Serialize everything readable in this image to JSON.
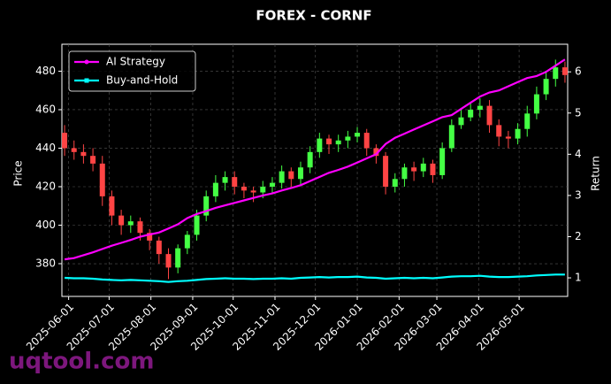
{
  "chart_data": {
    "type": "candlestick",
    "title": "FOREX - CORNF",
    "ylabel": "Price",
    "y2label": "Return",
    "watermark": "uqtool.com",
    "x": [
      "2025-05-29",
      "2025-06-05",
      "2025-06-12",
      "2025-06-19",
      "2025-06-26",
      "2025-07-03",
      "2025-07-10",
      "2025-07-17",
      "2025-07-24",
      "2025-07-31",
      "2025-08-07",
      "2025-08-14",
      "2025-08-21",
      "2025-08-28",
      "2025-09-04",
      "2025-09-11",
      "2025-09-18",
      "2025-09-25",
      "2025-10-02",
      "2025-10-09",
      "2025-10-16",
      "2025-10-23",
      "2025-10-30",
      "2025-11-06",
      "2025-11-13",
      "2025-11-20",
      "2025-11-27",
      "2025-12-04",
      "2025-12-11",
      "2025-12-18",
      "2025-12-25",
      "2026-01-01",
      "2026-01-08",
      "2026-01-15",
      "2026-01-22",
      "2026-01-29",
      "2026-02-05",
      "2026-02-12",
      "2026-02-19",
      "2026-02-26",
      "2026-03-05",
      "2026-03-12",
      "2026-03-19",
      "2026-03-26",
      "2026-04-02",
      "2026-04-09",
      "2026-04-16",
      "2026-04-23",
      "2026-04-30",
      "2026-05-07",
      "2026-05-14",
      "2026-05-21",
      "2026-05-28",
      "2026-06-04"
    ],
    "open": [
      448,
      440,
      438,
      436,
      432,
      415,
      405,
      400,
      402,
      396,
      392,
      385,
      378,
      388,
      395,
      405,
      415,
      422,
      425,
      420,
      418,
      417,
      420,
      422,
      428,
      424,
      430,
      438,
      445,
      442,
      444,
      446,
      448,
      440,
      436,
      420,
      424,
      430,
      428,
      432,
      426,
      440,
      452,
      456,
      460,
      462,
      452,
      446,
      445,
      450,
      458,
      468,
      476,
      482
    ],
    "high": [
      452,
      444,
      442,
      440,
      436,
      418,
      408,
      405,
      404,
      398,
      394,
      388,
      390,
      397,
      408,
      418,
      426,
      428,
      428,
      422,
      420,
      423,
      425,
      431,
      430,
      433,
      441,
      448,
      447,
      447,
      449,
      451,
      450,
      442,
      438,
      427,
      432,
      433,
      435,
      434,
      443,
      455,
      460,
      464,
      466,
      465,
      455,
      449,
      453,
      462,
      472,
      480,
      486,
      485
    ],
    "low": [
      436,
      434,
      432,
      428,
      410,
      400,
      395,
      396,
      392,
      387,
      380,
      372,
      375,
      385,
      392,
      402,
      412,
      418,
      416,
      414,
      412,
      414,
      417,
      419,
      420,
      421,
      427,
      435,
      437,
      438,
      440,
      443,
      436,
      432,
      416,
      417,
      420,
      423,
      425,
      422,
      424,
      438,
      450,
      454,
      456,
      448,
      441,
      440,
      442,
      446,
      455,
      465,
      472,
      474
    ],
    "close": [
      440,
      438,
      436,
      432,
      415,
      405,
      400,
      402,
      396,
      392,
      385,
      378,
      388,
      395,
      405,
      415,
      422,
      425,
      420,
      418,
      417,
      420,
      422,
      428,
      424,
      430,
      438,
      445,
      442,
      444,
      446,
      448,
      440,
      436,
      420,
      424,
      430,
      428,
      432,
      426,
      440,
      452,
      456,
      460,
      462,
      452,
      446,
      445,
      450,
      458,
      468,
      476,
      482,
      478
    ],
    "up_color": "#44ff44",
    "down_color": "#ff4444",
    "series": [
      {
        "name": "AI Strategy",
        "color": "#ff00ff",
        "axis": "y2",
        "values": [
          1.45,
          1.48,
          1.55,
          1.62,
          1.7,
          1.78,
          1.85,
          1.92,
          2.0,
          2.05,
          2.1,
          2.2,
          2.3,
          2.45,
          2.55,
          2.62,
          2.7,
          2.76,
          2.82,
          2.88,
          2.94,
          3.0,
          3.05,
          3.12,
          3.18,
          3.25,
          3.35,
          3.45,
          3.55,
          3.62,
          3.7,
          3.8,
          3.9,
          4.0,
          4.25,
          4.4,
          4.5,
          4.6,
          4.7,
          4.8,
          4.9,
          4.95,
          5.1,
          5.25,
          5.4,
          5.5,
          5.55,
          5.65,
          5.75,
          5.85,
          5.9,
          6.0,
          6.15,
          6.3
        ]
      },
      {
        "name": "Buy-and-Hold",
        "color": "#00ffff",
        "axis": "y2",
        "values": [
          1.0,
          0.99,
          0.99,
          0.98,
          0.96,
          0.95,
          0.94,
          0.95,
          0.94,
          0.93,
          0.92,
          0.9,
          0.92,
          0.93,
          0.95,
          0.97,
          0.98,
          0.99,
          0.98,
          0.98,
          0.97,
          0.98,
          0.98,
          0.99,
          0.98,
          1.0,
          1.01,
          1.02,
          1.01,
          1.02,
          1.02,
          1.03,
          1.01,
          1.0,
          0.98,
          0.99,
          1.0,
          0.99,
          1.0,
          0.99,
          1.01,
          1.03,
          1.04,
          1.04,
          1.05,
          1.03,
          1.02,
          1.02,
          1.03,
          1.04,
          1.06,
          1.07,
          1.08,
          1.08
        ]
      }
    ],
    "xlim": [
      "2025-05-27",
      "2026-06-06"
    ],
    "xticks": [
      "2025-06-01",
      "2025-07-01",
      "2025-08-01",
      "2025-09-01",
      "2025-10-01",
      "2025-11-01",
      "2025-12-01",
      "2026-01-01",
      "2026-02-01",
      "2026-03-01",
      "2026-04-01",
      "2026-05-01"
    ],
    "ylim": [
      363,
      494
    ],
    "yticks": [
      380,
      400,
      420,
      440,
      460,
      480
    ],
    "y2lim": [
      0.55,
      6.67
    ],
    "y2ticks": [
      1,
      2,
      3,
      4,
      5,
      6
    ],
    "grid": true,
    "legend": "upper left"
  }
}
